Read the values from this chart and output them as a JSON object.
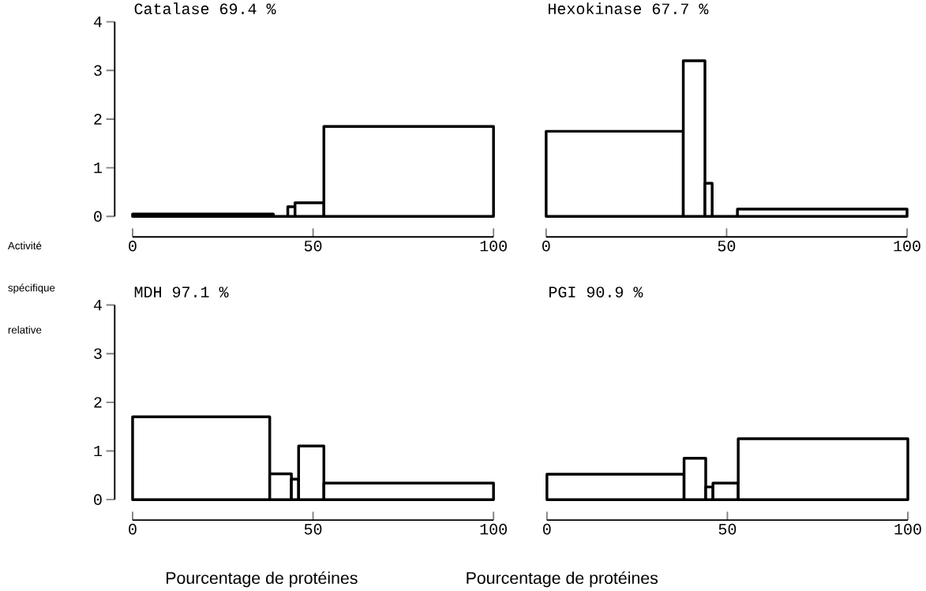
{
  "chart_data": [
    {
      "type": "histogram",
      "title": "Catalase 69.4 %",
      "bins": [
        0,
        39,
        43,
        45,
        53,
        100
      ],
      "values": [
        0.05,
        0,
        0.2,
        0.28,
        1.85
      ],
      "color": "#000000",
      "xlim": [
        0,
        100
      ],
      "xticks": [
        0,
        50,
        100
      ],
      "ylim": [
        0,
        4
      ],
      "yticks": [
        0,
        1,
        2,
        3,
        4
      ]
    },
    {
      "type": "histogram",
      "title": "Hexokinase 67.7 %",
      "bins": [
        0,
        38,
        44,
        46,
        53,
        100
      ],
      "values": [
        1.75,
        3.2,
        0.68,
        0,
        0.15
      ],
      "color": "#000000",
      "xlim": [
        0,
        100
      ],
      "xticks": [
        0,
        50,
        100
      ],
      "ylim": [
        0,
        4
      ],
      "yticks": [
        0,
        1,
        2,
        3,
        4
      ],
      "tick_labels": "x"
    },
    {
      "type": "histogram",
      "title": "MDH 97.1 %",
      "xlabel": "Pourcentage de protéines",
      "ylabel": "Activité spécifique relative",
      "bins": [
        0,
        38,
        44,
        46,
        53,
        100
      ],
      "values": [
        1.7,
        0.53,
        0.42,
        1.1,
        0.34
      ],
      "color": "#000000",
      "xlim": [
        0,
        100
      ],
      "xticks": [
        0,
        50,
        100
      ],
      "ylim": [
        0,
        4
      ],
      "yticks": [
        0,
        1,
        2,
        3,
        4
      ]
    },
    {
      "type": "histogram",
      "title": "PGI 90.9 %",
      "xlabel": "Pourcentage de protéines",
      "bins": [
        0,
        38,
        44,
        46,
        53,
        100
      ],
      "values": [
        0.52,
        0.85,
        0.26,
        0.34,
        1.25
      ],
      "color": "#000000",
      "xlim": [
        0,
        100
      ],
      "xticks": [
        0,
        50,
        100
      ],
      "ylim": [
        0,
        4
      ],
      "yticks": [
        0,
        1,
        2,
        3,
        4
      ],
      "tick_labels": "x"
    }
  ]
}
